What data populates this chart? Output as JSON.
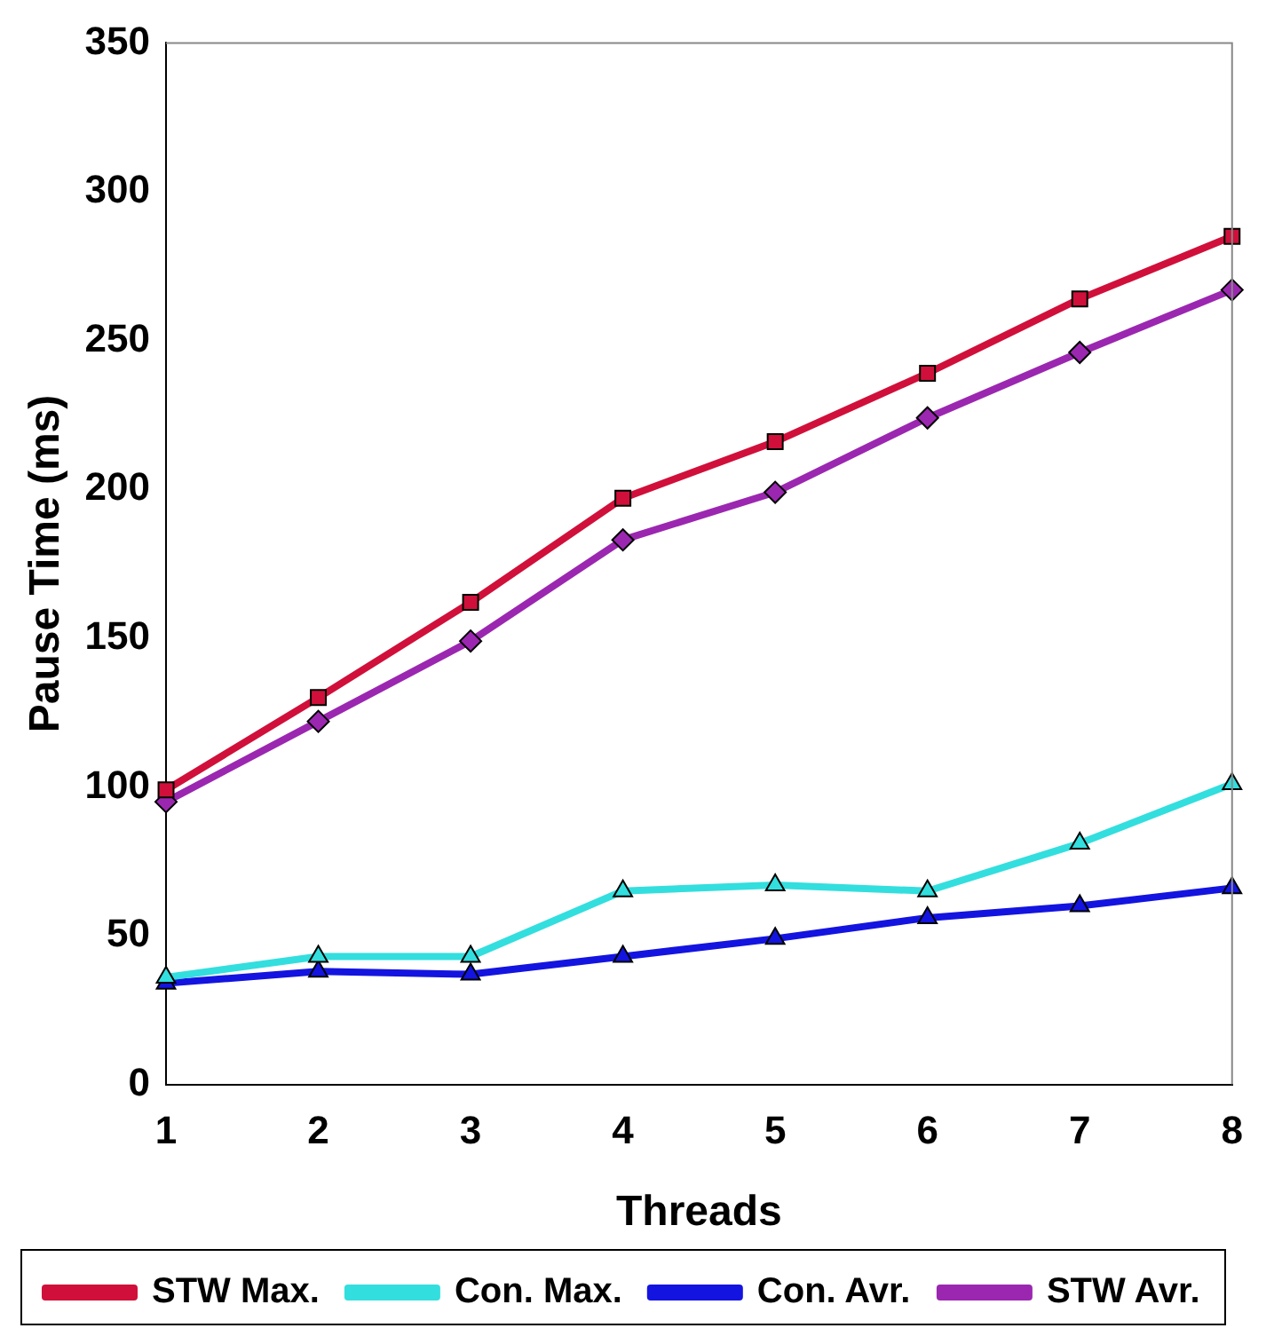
{
  "chart_data": {
    "type": "line",
    "xlabel": "Threads",
    "ylabel": "Pause Time (ms)",
    "categories": [
      "1",
      "2",
      "3",
      "4",
      "5",
      "6",
      "7",
      "8"
    ],
    "series": [
      {
        "name": "STW Max.",
        "color": "#d0103a",
        "marker": "square",
        "values": [
          99,
          130,
          162,
          197,
          216,
          239,
          264,
          285
        ]
      },
      {
        "name": "Con. Max.",
        "color": "#33dede",
        "marker": "triangle",
        "values": [
          36,
          43,
          43,
          65,
          67,
          65,
          81,
          101
        ]
      },
      {
        "name": "Con. Avr.",
        "color": "#1414e0",
        "marker": "triangle",
        "values": [
          34,
          38,
          37,
          43,
          49,
          56,
          60,
          66
        ]
      },
      {
        "name": "STW Avr.",
        "color": "#9b27b0",
        "marker": "diamond",
        "values": [
          95,
          122,
          149,
          183,
          199,
          224,
          246,
          267
        ]
      }
    ],
    "ylim": [
      0,
      350
    ],
    "yticks": [
      0,
      50,
      100,
      150,
      200,
      250,
      300,
      350
    ],
    "grid": false,
    "legend": "bottom"
  }
}
